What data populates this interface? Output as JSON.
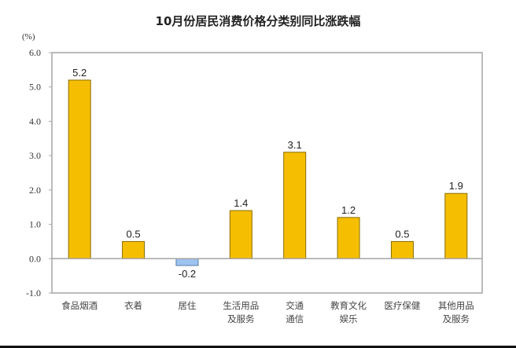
{
  "chart_data": {
    "type": "bar",
    "title": "10月份居民消费价格分类别同比涨跌幅",
    "ylabel": "(%)",
    "xlabel": "",
    "ylim": [
      -1.0,
      6.0
    ],
    "yticks": [
      "6.0",
      "5.0",
      "4.0",
      "3.0",
      "2.0",
      "1.0",
      "0.0",
      "-1.0"
    ],
    "ytick_values": [
      6,
      5,
      4,
      3,
      2,
      1,
      0,
      -1
    ],
    "grid": false,
    "legend": null,
    "categories": [
      [
        "食品烟酒"
      ],
      [
        "衣着"
      ],
      [
        "居住"
      ],
      [
        "生活用品",
        "及服务"
      ],
      [
        "交通",
        "通信"
      ],
      [
        "教育文化",
        "娱乐"
      ],
      [
        "医疗保健"
      ],
      [
        "其他用品",
        "及服务"
      ]
    ],
    "values": [
      5.2,
      0.5,
      -0.2,
      1.4,
      3.1,
      1.2,
      0.5,
      1.9
    ],
    "value_labels": [
      "5.2",
      "0.5",
      "-0.2",
      "1.4",
      "3.1",
      "1.2",
      "0.5",
      "1.9"
    ],
    "colors": {
      "positive": "#F5BE00",
      "positive_border": "#8A6D00",
      "negative": "#9DC3F0",
      "negative_border": "#5A7FA8",
      "frame": "#A6A6A6",
      "zero_line": "#A6A6A6"
    }
  }
}
